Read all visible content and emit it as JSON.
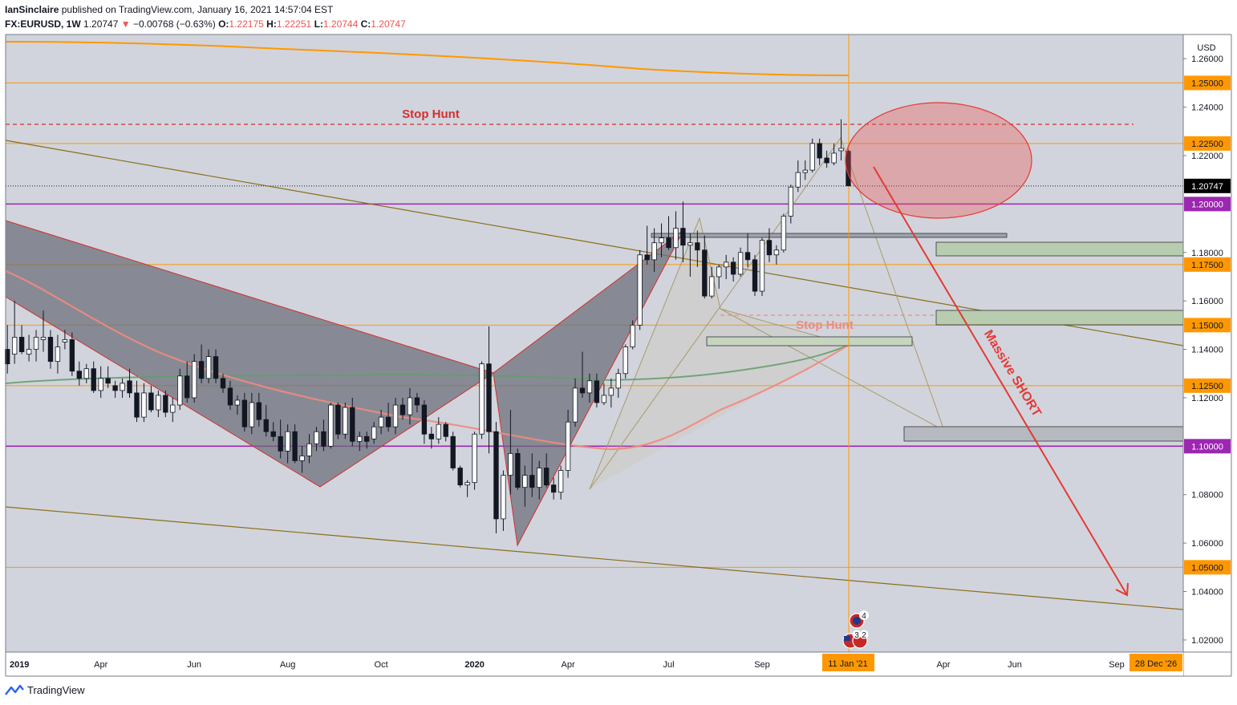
{
  "header": {
    "author": "IanSinclaire",
    "published_text": "published on TradingView.com, January 16, 2021 14:57:04 EST",
    "symbol": "FX:EURUSD, 1W",
    "last": "1.20747",
    "change": "−0.00768 (−0.63%)",
    "o_label": "O:",
    "o": "1.22175",
    "h_label": "H:",
    "h": "1.22251",
    "l_label": "L:",
    "l": "1.20744",
    "c_label": "C:",
    "c": "1.20747"
  },
  "footer": {
    "brand": "TradingView"
  },
  "chart_data": {
    "type": "candlestick",
    "currency": "USD",
    "ylim": [
      1.015,
      1.27
    ],
    "x_axis_labels": [
      "2019",
      "Apr",
      "Jun",
      "Aug",
      "Oct",
      "2020",
      "Apr",
      "Jul",
      "Sep",
      "Apr",
      "Jun",
      "Sep"
    ],
    "x_axis_bold": [
      "2019",
      "2020"
    ],
    "price_ticks": [
      "1.26000",
      "1.24000",
      "1.22000",
      "1.18000",
      "1.16000",
      "1.14000",
      "1.12000",
      "1.08000",
      "1.06000",
      "1.04000",
      "1.02000"
    ],
    "price_ticks_values": [
      1.26,
      1.24,
      1.22,
      1.18,
      1.16,
      1.14,
      1.12,
      1.08,
      1.06,
      1.04,
      1.02
    ],
    "horizontal_levels": [
      {
        "price": 1.25,
        "label": "1.25000",
        "color": "#ff9800"
      },
      {
        "price": 1.225,
        "label": "1.22500",
        "color": "#ff9800"
      },
      {
        "price": 1.2,
        "label": "1.20000",
        "color": "#9c27b0"
      },
      {
        "price": 1.175,
        "label": "1.17500",
        "color": "#ff9800"
      },
      {
        "price": 1.15,
        "label": "1.15000",
        "color": "#ff9800"
      },
      {
        "price": 1.125,
        "label": "1.12500",
        "color": "#ff9800"
      },
      {
        "price": 1.1,
        "label": "1.10000",
        "color": "#9c27b0"
      },
      {
        "price": 1.05,
        "label": "1.05000",
        "color": "#ff9800"
      }
    ],
    "last_price": {
      "price": 1.20747,
      "label": "1.20747"
    },
    "current_date_label": "11 Jan '21",
    "end_date_label": "28 Dec '26",
    "annotations": [
      {
        "text": "Stop Hunt",
        "price": 1.2405,
        "color": "#d32f2f"
      },
      {
        "text": "Stop Hunt",
        "price": 1.1605,
        "color": "#ef8a80"
      },
      {
        "text": "Massive SHORT",
        "color": "#e53935"
      }
    ],
    "event_badges": [
      "4",
      "3",
      "2"
    ],
    "candles": [
      [
        1.14,
        1.15,
        1.13,
        1.134
      ],
      [
        1.138,
        1.16,
        1.134,
        1.145
      ],
      [
        1.145,
        1.15,
        1.138,
        1.139
      ],
      [
        1.138,
        1.146,
        1.135,
        1.14
      ],
      [
        1.14,
        1.148,
        1.135,
        1.145
      ],
      [
        1.144,
        1.156,
        1.139,
        1.145
      ],
      [
        1.145,
        1.148,
        1.132,
        1.135
      ],
      [
        1.135,
        1.146,
        1.13,
        1.141
      ],
      [
        1.143,
        1.148,
        1.14,
        1.144
      ],
      [
        1.144,
        1.147,
        1.129,
        1.131
      ],
      [
        1.131,
        1.135,
        1.125,
        1.128
      ],
      [
        1.128,
        1.134,
        1.126,
        1.132
      ],
      [
        1.132,
        1.135,
        1.122,
        1.123
      ],
      [
        1.123,
        1.133,
        1.12,
        1.128
      ],
      [
        1.128,
        1.133,
        1.124,
        1.126
      ],
      [
        1.125,
        1.127,
        1.12,
        1.123
      ],
      [
        1.123,
        1.128,
        1.12,
        1.126
      ],
      [
        1.127,
        1.132,
        1.12,
        1.122
      ],
      [
        1.122,
        1.127,
        1.11,
        1.112
      ],
      [
        1.112,
        1.126,
        1.11,
        1.122
      ],
      [
        1.122,
        1.125,
        1.114,
        1.115
      ],
      [
        1.115,
        1.123,
        1.112,
        1.121
      ],
      [
        1.121,
        1.123,
        1.112,
        1.114
      ],
      [
        1.114,
        1.12,
        1.11,
        1.117
      ],
      [
        1.117,
        1.132,
        1.115,
        1.129
      ],
      [
        1.129,
        1.135,
        1.118,
        1.12
      ],
      [
        1.12,
        1.138,
        1.118,
        1.135
      ],
      [
        1.135,
        1.142,
        1.126,
        1.128
      ],
      [
        1.128,
        1.14,
        1.126,
        1.137
      ],
      [
        1.137,
        1.14,
        1.126,
        1.128
      ],
      [
        1.128,
        1.13,
        1.122,
        1.124
      ],
      [
        1.124,
        1.127,
        1.115,
        1.117
      ],
      [
        1.117,
        1.121,
        1.113,
        1.119
      ],
      [
        1.119,
        1.122,
        1.106,
        1.108
      ],
      [
        1.108,
        1.122,
        1.105,
        1.118
      ],
      [
        1.118,
        1.122,
        1.108,
        1.111
      ],
      [
        1.111,
        1.117,
        1.104,
        1.106
      ],
      [
        1.106,
        1.11,
        1.102,
        1.104
      ],
      [
        1.104,
        1.111,
        1.095,
        1.098
      ],
      [
        1.098,
        1.109,
        1.093,
        1.106
      ],
      [
        1.106,
        1.109,
        1.093,
        1.094
      ],
      [
        1.094,
        1.1,
        1.089,
        1.096
      ],
      [
        1.096,
        1.105,
        1.093,
        1.101
      ],
      [
        1.101,
        1.108,
        1.098,
        1.106
      ],
      [
        1.106,
        1.111,
        1.098,
        1.1
      ],
      [
        1.1,
        1.118,
        1.099,
        1.117
      ],
      [
        1.117,
        1.118,
        1.103,
        1.105
      ],
      [
        1.105,
        1.118,
        1.103,
        1.116
      ],
      [
        1.116,
        1.12,
        1.1,
        1.102
      ],
      [
        1.102,
        1.106,
        1.098,
        1.104
      ],
      [
        1.104,
        1.106,
        1.099,
        1.102
      ],
      [
        1.103,
        1.11,
        1.101,
        1.108
      ],
      [
        1.108,
        1.115,
        1.105,
        1.112
      ],
      [
        1.112,
        1.118,
        1.106,
        1.108
      ],
      [
        1.108,
        1.12,
        1.105,
        1.117
      ],
      [
        1.117,
        1.12,
        1.111,
        1.113
      ],
      [
        1.113,
        1.124,
        1.109,
        1.12
      ],
      [
        1.12,
        1.122,
        1.114,
        1.117
      ],
      [
        1.117,
        1.119,
        1.101,
        1.105
      ],
      [
        1.105,
        1.108,
        1.099,
        1.103
      ],
      [
        1.103,
        1.112,
        1.101,
        1.109
      ],
      [
        1.109,
        1.11,
        1.102,
        1.104
      ],
      [
        1.104,
        1.106,
        1.09,
        1.091
      ],
      [
        1.091,
        1.092,
        1.083,
        1.084
      ],
      [
        1.084,
        1.086,
        1.079,
        1.085
      ],
      [
        1.085,
        1.106,
        1.082,
        1.105
      ],
      [
        1.105,
        1.135,
        1.103,
        1.134
      ],
      [
        1.134,
        1.1495,
        1.097,
        1.106
      ],
      [
        1.106,
        1.11,
        1.064,
        1.07
      ],
      [
        1.07,
        1.09,
        1.065,
        1.088
      ],
      [
        1.088,
        1.115,
        1.08,
        1.097
      ],
      [
        1.097,
        1.099,
        1.082,
        1.083
      ],
      [
        1.083,
        1.092,
        1.075,
        1.088
      ],
      [
        1.088,
        1.097,
        1.079,
        1.083
      ],
      [
        1.083,
        1.094,
        1.078,
        1.091
      ],
      [
        1.091,
        1.097,
        1.083,
        1.084
      ],
      [
        1.084,
        1.087,
        1.078,
        1.081
      ],
      [
        1.081,
        1.092,
        1.078,
        1.09
      ],
      [
        1.09,
        1.115,
        1.087,
        1.11
      ],
      [
        1.11,
        1.128,
        1.108,
        1.124
      ],
      [
        1.124,
        1.139,
        1.12,
        1.122
      ],
      [
        1.122,
        1.13,
        1.118,
        1.127
      ],
      [
        1.127,
        1.13,
        1.116,
        1.118
      ],
      [
        1.118,
        1.126,
        1.117,
        1.121
      ],
      [
        1.121,
        1.128,
        1.116,
        1.124
      ],
      [
        1.124,
        1.132,
        1.12,
        1.13
      ],
      [
        1.13,
        1.142,
        1.128,
        1.141
      ],
      [
        1.141,
        1.152,
        1.14,
        1.15
      ],
      [
        1.15,
        1.181,
        1.148,
        1.179
      ],
      [
        1.179,
        1.191,
        1.175,
        1.177
      ],
      [
        1.177,
        1.19,
        1.172,
        1.184
      ],
      [
        1.184,
        1.192,
        1.178,
        1.186
      ],
      [
        1.186,
        1.195,
        1.181,
        1.182
      ],
      [
        1.182,
        1.197,
        1.177,
        1.19
      ],
      [
        1.19,
        1.201,
        1.176,
        1.183
      ],
      [
        1.183,
        1.188,
        1.17,
        1.184
      ],
      [
        1.184,
        1.189,
        1.174,
        1.181
      ],
      [
        1.181,
        1.187,
        1.161,
        1.162
      ],
      [
        1.162,
        1.174,
        1.161,
        1.17
      ],
      [
        1.17,
        1.175,
        1.165,
        1.174
      ],
      [
        1.174,
        1.179,
        1.169,
        1.176
      ],
      [
        1.176,
        1.178,
        1.168,
        1.171
      ],
      [
        1.171,
        1.182,
        1.17,
        1.18
      ],
      [
        1.18,
        1.188,
        1.174,
        1.177
      ],
      [
        1.177,
        1.179,
        1.162,
        1.164
      ],
      [
        1.164,
        1.186,
        1.162,
        1.185
      ],
      [
        1.185,
        1.19,
        1.176,
        1.179
      ],
      [
        1.179,
        1.183,
        1.175,
        1.181
      ],
      [
        1.181,
        1.196,
        1.18,
        1.195
      ],
      [
        1.195,
        1.208,
        1.192,
        1.207
      ],
      [
        1.207,
        1.218,
        1.205,
        1.213
      ],
      [
        1.213,
        1.218,
        1.21,
        1.214
      ],
      [
        1.214,
        1.227,
        1.213,
        1.225
      ],
      [
        1.225,
        1.227,
        1.216,
        1.219
      ],
      [
        1.219,
        1.222,
        1.215,
        1.217
      ],
      [
        1.217,
        1.225,
        1.216,
        1.221
      ],
      [
        1.222,
        1.235,
        1.218,
        1.223
      ],
      [
        1.2218,
        1.2225,
        1.2074,
        1.2075
      ]
    ]
  }
}
